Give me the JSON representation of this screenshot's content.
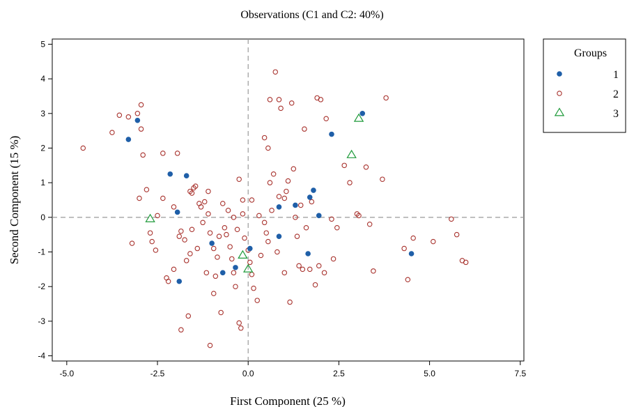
{
  "chart_data": {
    "type": "scatter",
    "title": "Observations (C1 and C2: 40%)",
    "xlabel": "First Component (25 %)",
    "ylabel": "Second Component (15 %)",
    "xlim": [
      -5.4,
      7.6
    ],
    "ylim": [
      -4.15,
      5.15
    ],
    "xticks": [
      -5.0,
      -2.5,
      0.0,
      2.5,
      5.0,
      7.5
    ],
    "xtick_labels": [
      "-5.0",
      "-2.5",
      "0.0",
      "2.5",
      "5.0",
      "7.5"
    ],
    "yticks": [
      -4,
      -3,
      -2,
      -1,
      0,
      1,
      2,
      3,
      4,
      5
    ],
    "ytick_labels": [
      "-4",
      "-3",
      "-2",
      "-1",
      "0",
      "1",
      "2",
      "3",
      "4",
      "5"
    ],
    "reference_lines": {
      "x": 0,
      "y": 0,
      "style": "dashed"
    },
    "grid": false,
    "legend": {
      "title": "Groups",
      "placement": "right"
    },
    "colors": {
      "group1": "#1f5fa8",
      "group2": "#a8322d",
      "group3": "#1e9a3a",
      "axis": "#000000",
      "reflines": "#9a9a9a"
    },
    "series": [
      {
        "name": "1",
        "marker": "filled-circle",
        "points": [
          [
            -3.3,
            2.25
          ],
          [
            -3.05,
            2.8
          ],
          [
            -2.15,
            1.25
          ],
          [
            -1.7,
            1.2
          ],
          [
            -1.95,
            0.15
          ],
          [
            -1.9,
            -1.85
          ],
          [
            -1.0,
            -0.75
          ],
          [
            -0.7,
            -1.6
          ],
          [
            -0.35,
            -1.45
          ],
          [
            0.05,
            -0.9
          ],
          [
            0.85,
            0.3
          ],
          [
            0.85,
            -0.55
          ],
          [
            1.3,
            0.35
          ],
          [
            1.7,
            0.58
          ],
          [
            1.8,
            0.78
          ],
          [
            1.95,
            0.05
          ],
          [
            1.65,
            -1.05
          ],
          [
            2.3,
            2.4
          ],
          [
            3.15,
            3.0
          ],
          [
            4.5,
            -1.05
          ]
        ]
      },
      {
        "name": "2",
        "marker": "open-circle",
        "points": [
          [
            -4.55,
            2.0
          ],
          [
            -3.75,
            2.45
          ],
          [
            -3.55,
            2.95
          ],
          [
            -3.3,
            2.9
          ],
          [
            -3.05,
            3.0
          ],
          [
            -2.95,
            3.25
          ],
          [
            -2.95,
            2.55
          ],
          [
            -2.9,
            1.8
          ],
          [
            -3.2,
            -0.75
          ],
          [
            -3.0,
            0.55
          ],
          [
            -2.8,
            0.8
          ],
          [
            -2.65,
            -0.7
          ],
          [
            -2.55,
            -0.95
          ],
          [
            -2.35,
            1.85
          ],
          [
            -2.35,
            0.55
          ],
          [
            -2.25,
            -1.75
          ],
          [
            -2.2,
            -1.85
          ],
          [
            -2.05,
            -1.5
          ],
          [
            -1.95,
            1.85
          ],
          [
            -1.85,
            -0.4
          ],
          [
            -1.75,
            -0.65
          ],
          [
            -1.7,
            -1.25
          ],
          [
            -1.65,
            -2.85
          ],
          [
            -1.85,
            -3.25
          ],
          [
            -1.6,
            0.75
          ],
          [
            -1.55,
            0.7
          ],
          [
            -1.5,
            0.85
          ],
          [
            -1.45,
            0.9
          ],
          [
            -1.35,
            0.4
          ],
          [
            -1.3,
            0.3
          ],
          [
            -1.25,
            -0.15
          ],
          [
            -1.2,
            0.45
          ],
          [
            -1.1,
            0.1
          ],
          [
            -1.05,
            -0.45
          ],
          [
            -0.95,
            -0.9
          ],
          [
            -0.85,
            -1.15
          ],
          [
            -0.9,
            -1.7
          ],
          [
            -0.95,
            -2.2
          ],
          [
            -0.75,
            -2.75
          ],
          [
            -1.05,
            -3.7
          ],
          [
            -0.65,
            -0.3
          ],
          [
            -0.6,
            -0.5
          ],
          [
            -0.5,
            -0.85
          ],
          [
            -0.45,
            -1.2
          ],
          [
            -0.4,
            -1.6
          ],
          [
            -0.35,
            -2.0
          ],
          [
            -0.3,
            -0.35
          ],
          [
            -0.25,
            -3.05
          ],
          [
            -0.2,
            -3.2
          ],
          [
            -0.15,
            0.5
          ],
          [
            -0.1,
            -0.6
          ],
          [
            0.0,
            -0.95
          ],
          [
            0.05,
            -1.3
          ],
          [
            0.1,
            -1.65
          ],
          [
            0.15,
            -2.05
          ],
          [
            -0.25,
            1.1
          ],
          [
            0.1,
            0.5
          ],
          [
            0.3,
            0.05
          ],
          [
            0.45,
            -0.15
          ],
          [
            0.5,
            -0.45
          ],
          [
            0.55,
            -0.7
          ],
          [
            0.6,
            1.0
          ],
          [
            0.65,
            0.2
          ],
          [
            0.45,
            2.3
          ],
          [
            0.55,
            2.0
          ],
          [
            0.7,
            1.25
          ],
          [
            0.8,
            -1.0
          ],
          [
            0.85,
            0.6
          ],
          [
            0.85,
            3.4
          ],
          [
            0.9,
            3.15
          ],
          [
            0.75,
            4.2
          ],
          [
            0.6,
            3.4
          ],
          [
            1.0,
            -1.6
          ],
          [
            1.05,
            0.75
          ],
          [
            1.1,
            1.05
          ],
          [
            1.15,
            -2.45
          ],
          [
            1.2,
            3.3
          ],
          [
            1.3,
            0.0
          ],
          [
            1.35,
            -0.55
          ],
          [
            1.4,
            -1.4
          ],
          [
            1.45,
            0.35
          ],
          [
            1.5,
            -1.5
          ],
          [
            1.55,
            2.55
          ],
          [
            1.6,
            -0.3
          ],
          [
            1.7,
            -1.5
          ],
          [
            1.75,
            0.45
          ],
          [
            1.85,
            -1.95
          ],
          [
            1.9,
            3.45
          ],
          [
            1.95,
            -1.4
          ],
          [
            2.0,
            3.4
          ],
          [
            2.1,
            -1.6
          ],
          [
            2.15,
            2.85
          ],
          [
            2.35,
            -1.2
          ],
          [
            2.65,
            1.5
          ],
          [
            2.8,
            1.0
          ],
          [
            3.0,
            0.1
          ],
          [
            3.05,
            0.05
          ],
          [
            3.25,
            1.45
          ],
          [
            3.35,
            -0.2
          ],
          [
            3.7,
            1.1
          ],
          [
            3.8,
            3.45
          ],
          [
            4.3,
            -0.9
          ],
          [
            4.4,
            -1.8
          ],
          [
            4.55,
            -0.6
          ],
          [
            5.1,
            -0.7
          ],
          [
            5.6,
            -0.05
          ],
          [
            5.75,
            -0.5
          ],
          [
            5.9,
            -1.25
          ],
          [
            6.0,
            -1.3
          ],
          [
            -0.4,
            0.0
          ],
          [
            -0.7,
            0.4
          ],
          [
            -1.55,
            -0.35
          ],
          [
            -2.05,
            0.3
          ],
          [
            -2.5,
            0.05
          ],
          [
            -1.15,
            -1.6
          ],
          [
            -0.8,
            -0.55
          ],
          [
            0.25,
            -2.4
          ],
          [
            1.0,
            0.55
          ],
          [
            -1.4,
            -0.9
          ],
          [
            -1.9,
            -0.55
          ],
          [
            -0.15,
            0.1
          ],
          [
            -0.55,
            0.2
          ],
          [
            2.45,
            -0.3
          ],
          [
            1.25,
            1.4
          ],
          [
            0.35,
            -1.1
          ],
          [
            -2.7,
            -0.45
          ],
          [
            -1.6,
            -1.05
          ],
          [
            -1.1,
            0.75
          ],
          [
            3.45,
            -1.55
          ],
          [
            2.3,
            -0.05
          ]
        ]
      },
      {
        "name": "3",
        "marker": "open-triangle",
        "points": [
          [
            -2.7,
            -0.05
          ],
          [
            -0.15,
            -1.1
          ],
          [
            0.0,
            -1.5
          ],
          [
            2.85,
            1.8
          ],
          [
            3.05,
            2.85
          ]
        ]
      }
    ]
  }
}
